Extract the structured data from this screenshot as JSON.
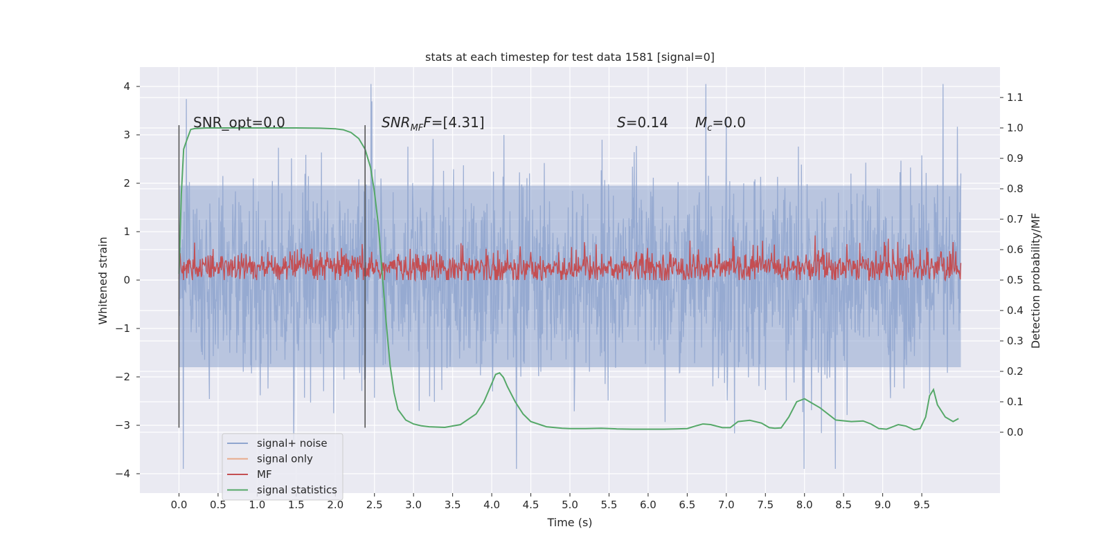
{
  "chart_data": {
    "type": "line",
    "title": "stats at each timestep for test data 1581 [signal=0]",
    "xlabel": "Time (s)",
    "ylabel_left": "Whitened strain",
    "ylabel_right": "Detection probability/MF",
    "xlim": [
      -0.5,
      10.5
    ],
    "ylim_left": [
      -4.4,
      4.4
    ],
    "ylim_right": [
      -0.2,
      1.2
    ],
    "x_ticks": [
      "0.0",
      "0.5",
      "1.0",
      "1.5",
      "2.0",
      "2.5",
      "3.0",
      "3.5",
      "4.0",
      "4.5",
      "5.0",
      "5.5",
      "6.0",
      "6.5",
      "7.0",
      "7.5",
      "8.0",
      "8.5",
      "9.0",
      "9.5"
    ],
    "y_ticks_left": [
      "4",
      "3",
      "2",
      "1",
      "0",
      "−1",
      "−2",
      "−3",
      "−4"
    ],
    "y_ticks_right": [
      "1.1",
      "1.0",
      "0.9",
      "0.8",
      "0.7",
      "0.6",
      "0.5",
      "0.4",
      "0.3",
      "0.2",
      "0.1",
      "0.0"
    ],
    "grid": true,
    "legend_position": "lower-left",
    "annotations": {
      "snr_opt": "SNR_opt=0.0",
      "snr_mf_label": "SNR",
      "snr_mf_sub": "MF",
      "snr_mf_value": "=[4.31]",
      "s_label": "S",
      "s_value": "=0.14",
      "mc_label": "M",
      "mc_sub": "c",
      "mc_value": "=0.0"
    },
    "vertical_markers": [
      0.0,
      2.38
    ],
    "marker_range_left": [
      -3.05,
      3.2
    ],
    "series": [
      {
        "name": "signal+ noise",
        "color": "#8fa5cf",
        "axis": "left",
        "t_range": [
          0.0,
          10.0
        ],
        "envelope_core": [
          -1.8,
          1.95
        ],
        "spike_range": [
          -3.9,
          4.05
        ],
        "values": []
      },
      {
        "name": "signal only",
        "color": "#e8a98a",
        "axis": "left",
        "values": []
      },
      {
        "name": "MF",
        "color": "#c44e52",
        "axis": "right",
        "t_range": [
          0.0,
          10.0
        ],
        "baseline": 0.54,
        "band": [
          0.5,
          0.6
        ],
        "peak": 0.67
      },
      {
        "name": "signal statistics",
        "color": "#55a868",
        "axis": "right",
        "x": [
          0.0,
          0.03,
          0.06,
          0.1,
          0.15,
          0.2,
          0.35,
          0.7,
          1.0,
          1.5,
          1.8,
          2.0,
          2.1,
          2.2,
          2.3,
          2.38,
          2.45,
          2.5,
          2.55,
          2.6,
          2.65,
          2.7,
          2.75,
          2.8,
          2.9,
          3.0,
          3.1,
          3.2,
          3.4,
          3.6,
          3.8,
          3.9,
          4.0,
          4.05,
          4.1,
          4.15,
          4.2,
          4.3,
          4.4,
          4.5,
          4.7,
          4.9,
          5.0,
          5.2,
          5.4,
          5.6,
          5.8,
          6.0,
          6.2,
          6.35,
          6.5,
          6.6,
          6.7,
          6.8,
          6.95,
          7.05,
          7.15,
          7.3,
          7.45,
          7.55,
          7.62,
          7.7,
          7.8,
          7.9,
          8.0,
          8.2,
          8.4,
          8.6,
          8.75,
          8.85,
          8.95,
          9.05,
          9.2,
          9.3,
          9.4,
          9.48,
          9.55,
          9.6,
          9.65,
          9.7,
          9.8,
          9.9,
          9.97
        ],
        "values": [
          0.52,
          0.78,
          0.93,
          0.96,
          0.995,
          0.998,
          1.0,
          1.0,
          1.0,
          1.0,
          0.999,
          0.997,
          0.994,
          0.985,
          0.965,
          0.93,
          0.87,
          0.79,
          0.68,
          0.52,
          0.36,
          0.22,
          0.13,
          0.075,
          0.04,
          0.027,
          0.021,
          0.018,
          0.016,
          0.025,
          0.06,
          0.1,
          0.16,
          0.19,
          0.195,
          0.18,
          0.15,
          0.1,
          0.06,
          0.035,
          0.018,
          0.013,
          0.012,
          0.012,
          0.013,
          0.011,
          0.01,
          0.01,
          0.01,
          0.011,
          0.012,
          0.02,
          0.027,
          0.025,
          0.015,
          0.015,
          0.035,
          0.039,
          0.03,
          0.015,
          0.013,
          0.014,
          0.05,
          0.1,
          0.11,
          0.08,
          0.04,
          0.035,
          0.037,
          0.027,
          0.012,
          0.01,
          0.025,
          0.02,
          0.008,
          0.012,
          0.05,
          0.12,
          0.14,
          0.09,
          0.05,
          0.035,
          0.045
        ]
      }
    ]
  }
}
